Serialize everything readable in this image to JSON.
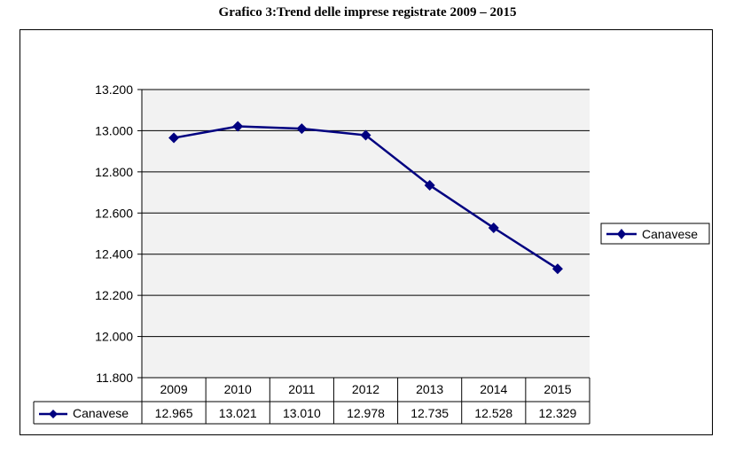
{
  "title": "Grafico 3:Trend delle imprese registrate 2009 – 2015",
  "chart_data": {
    "type": "line",
    "title": "Grafico 3:Trend delle imprese registrate 2009 – 2015",
    "categories": [
      "2009",
      "2010",
      "2011",
      "2012",
      "2013",
      "2014",
      "2015"
    ],
    "series": [
      {
        "name": "Canavese",
        "values": [
          12965,
          13021,
          13010,
          12978,
          12735,
          12528,
          12329
        ],
        "labels": [
          "12.965",
          "13.021",
          "13.010",
          "12.978",
          "12.735",
          "12.528",
          "12.329"
        ]
      }
    ],
    "yticks": [
      "11.800",
      "12.000",
      "12.200",
      "12.400",
      "12.600",
      "12.800",
      "13.000",
      "13.200"
    ],
    "ylim": [
      11800,
      13200
    ],
    "grid": true,
    "legend": "right",
    "data_table": true,
    "colors": {
      "line": "#000080",
      "plot_background": "#f2f2f2",
      "grid": "#000000"
    }
  }
}
